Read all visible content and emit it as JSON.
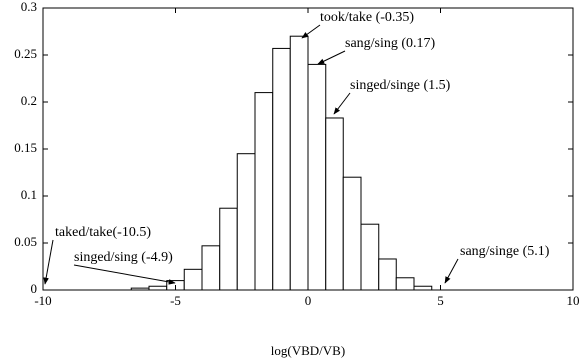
{
  "chart_data": {
    "type": "histogram",
    "xlabel": "log(VBD/VB)",
    "bins": [
      -6.67,
      -6,
      -5.33,
      -4.67,
      -4,
      -3.33,
      -2.67,
      -2,
      -1.33,
      -0.67,
      0,
      0.67,
      1.33,
      2,
      2.67,
      3.33,
      4,
      4.67
    ],
    "values": [
      0.002,
      0.004,
      0.01,
      0.022,
      0.047,
      0.087,
      0.145,
      0.21,
      0.257,
      0.27,
      0.24,
      0.183,
      0.12,
      0.07,
      0.033,
      0.013,
      0.004
    ],
    "color": "#ffffff",
    "xlim": [
      -10,
      10
    ],
    "xticks": [
      -10,
      -5,
      0,
      5,
      10
    ],
    "ylim": [
      0,
      0.3
    ],
    "yticks": [
      0,
      0.05,
      0.1,
      0.15,
      0.2,
      0.25,
      0.3
    ],
    "annotations": [
      "took/take (-0.35)",
      "sang/sing (0.17)",
      "singed/singe (1.5)",
      "taked/take(-10.5)",
      "singed/sing (-4.9)",
      "sang/singe (5.1)"
    ]
  }
}
